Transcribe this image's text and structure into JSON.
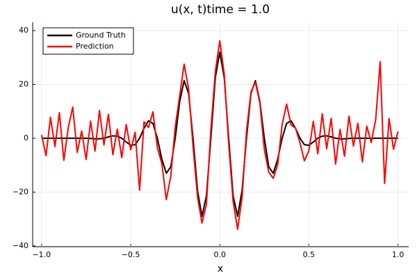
{
  "chart_data": {
    "type": "line",
    "title": "u(x, t)time = 1.0",
    "x_label": "x",
    "x": [
      -1.0,
      -0.975,
      -0.95,
      -0.925,
      -0.9,
      -0.875,
      -0.85,
      -0.825,
      -0.8,
      -0.775,
      -0.75,
      -0.725,
      -0.7,
      -0.675,
      -0.65,
      -0.625,
      -0.6,
      -0.575,
      -0.55,
      -0.525,
      -0.5,
      -0.475,
      -0.45,
      -0.425,
      -0.4,
      -0.375,
      -0.35,
      -0.325,
      -0.3,
      -0.275,
      -0.25,
      -0.225,
      -0.2,
      -0.175,
      -0.15,
      -0.125,
      -0.1,
      -0.075,
      -0.05,
      -0.025,
      0.0,
      0.025,
      0.05,
      0.075,
      0.1,
      0.125,
      0.15,
      0.175,
      0.2,
      0.225,
      0.25,
      0.275,
      0.3,
      0.325,
      0.35,
      0.375,
      0.4,
      0.425,
      0.45,
      0.475,
      0.5,
      0.525,
      0.55,
      0.575,
      0.6,
      0.625,
      0.65,
      0.675,
      0.7,
      0.725,
      0.75,
      0.775,
      0.8,
      0.825,
      0.85,
      0.875,
      0.9,
      0.925,
      0.95,
      0.975,
      1.0
    ],
    "series": [
      {
        "name": "Ground Truth",
        "color": "#000000",
        "values": [
          0,
          0,
          0,
          0,
          0,
          0,
          0,
          0,
          0,
          0,
          0,
          -0.1,
          -0.2,
          -0.2,
          0,
          0.5,
          0.9,
          0.8,
          0,
          -1.4,
          -2.6,
          -2.4,
          0,
          3.7,
          6.5,
          5.5,
          0,
          -7.8,
          -13,
          -10.6,
          0,
          13.6,
          21.4,
          16.7,
          0,
          -19.4,
          -29,
          -21.4,
          0,
          22.5,
          32,
          22.5,
          0,
          -21.4,
          -29,
          -19.4,
          0,
          16.7,
          21.4,
          13.6,
          0,
          -10.6,
          -13,
          -7.8,
          0,
          5.5,
          6.5,
          3.7,
          0,
          -2.4,
          -2.6,
          -1.4,
          0,
          0.8,
          0.9,
          0.5,
          0,
          -0.2,
          -0.2,
          -0.1,
          0,
          0,
          0,
          0,
          0,
          0,
          0,
          0,
          0,
          0,
          0
        ]
      },
      {
        "name": "Prediction",
        "color": "#ff0000",
        "values": [
          1.2,
          -6.5,
          7.8,
          -3.1,
          9.5,
          -8.2,
          4.1,
          11.6,
          -5.3,
          2.7,
          -7.9,
          6.4,
          -4.8,
          10.3,
          -2.5,
          8.9,
          -6.1,
          3.4,
          -7.2,
          5.1,
          -4.3,
          2.2,
          -19.3,
          6.1,
          4.0,
          9.8,
          -3.6,
          -9.4,
          -22.8,
          -14.1,
          4.2,
          15.8,
          27.5,
          18.4,
          -3.1,
          -21.7,
          -31.5,
          -24.6,
          3.2,
          24.8,
          36.2,
          23.9,
          -2.1,
          -23.5,
          -33.8,
          -22.1,
          2.6,
          17.2,
          20.8,
          13.1,
          -4.2,
          -12.6,
          -14.9,
          -9.8,
          5.1,
          12.7,
          4.9,
          3.8,
          -1.7,
          -8.4,
          -4.6,
          6.3,
          -5.8,
          9.1,
          -3.9,
          7.4,
          -9.6,
          3.3,
          -6.7,
          8.2,
          -2.9,
          5.6,
          -8.8,
          4.5,
          -1.6,
          6.9,
          28.4,
          -16.8,
          7.3,
          -4.1,
          2.5
        ]
      }
    ],
    "xlim": [
      -1.05,
      1.06
    ],
    "ylim": [
      -40.3,
      43.1
    ],
    "xticks": [
      {
        "value": -1.0,
        "label": "−1.0"
      },
      {
        "value": -0.5,
        "label": "−0.5"
      },
      {
        "value": 0,
        "label": "0.0"
      },
      {
        "value": 0.5,
        "label": "0.5"
      },
      {
        "value": 1.0,
        "label": "1.0"
      }
    ],
    "yticks": [
      {
        "value": -40,
        "label": "−40"
      },
      {
        "value": -20,
        "label": "−20"
      },
      0,
      20,
      40
    ],
    "grid": true,
    "legend": "top-left"
  }
}
